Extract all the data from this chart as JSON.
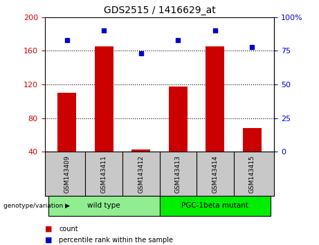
{
  "title": "GDS2515 / 1416629_at",
  "categories": [
    "GSM143409",
    "GSM143411",
    "GSM143412",
    "GSM143413",
    "GSM143414",
    "GSM143415"
  ],
  "bar_values": [
    110,
    165,
    43,
    118,
    165,
    68
  ],
  "percentile_values": [
    83,
    90,
    73,
    83,
    90,
    78
  ],
  "bar_color": "#cc0000",
  "dot_color": "#0000cc",
  "ylim_left": [
    40,
    200
  ],
  "ylim_right": [
    0,
    100
  ],
  "yticks_left": [
    40,
    80,
    120,
    160,
    200
  ],
  "yticks_right": [
    0,
    25,
    50,
    75,
    100
  ],
  "ytick_labels_right": [
    "0",
    "25",
    "50",
    "75",
    "100%"
  ],
  "wt_color": "#90ee90",
  "pgc_color": "#00ee00",
  "legend_items": [
    {
      "label": "count",
      "color": "#cc0000"
    },
    {
      "label": "percentile rank within the sample",
      "color": "#0000cc"
    }
  ],
  "bar_width": 0.5,
  "baseline": 40,
  "background_color": "#ffffff",
  "tick_color_left": "#cc0000",
  "tick_color_right": "#0000cc",
  "label_area_bg": "#c8c8c8",
  "fig_width": 4.61,
  "fig_height": 3.54,
  "dpi": 100
}
